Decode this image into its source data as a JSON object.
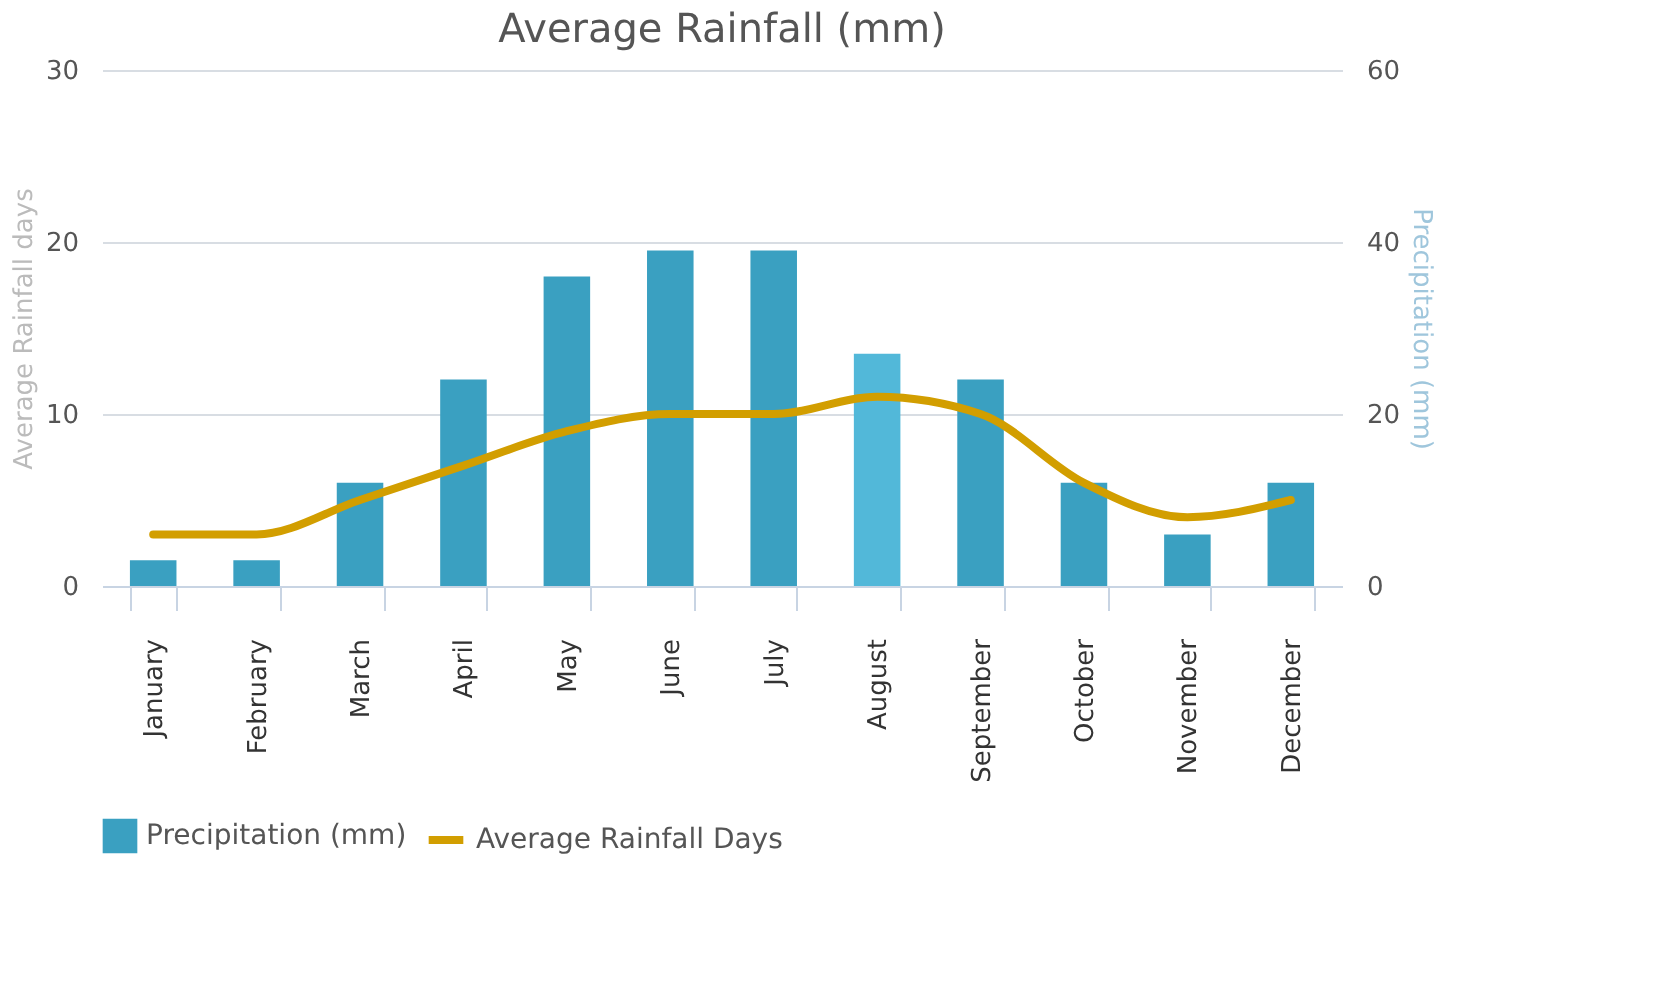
{
  "chart_data": {
    "type": "bar",
    "title": "Average Rainfall (mm)",
    "categories": [
      "January",
      "February",
      "March",
      "April",
      "May",
      "June",
      "July",
      "August",
      "September",
      "October",
      "November",
      "December"
    ],
    "series": [
      {
        "name": "Precipitation (mm)",
        "axis": "y2",
        "color": "#3aa0c1",
        "colors": [
          "#3aa0c1",
          "#3aa0c1",
          "#3aa0c1",
          "#3aa0c1",
          "#3aa0c1",
          "#3aa0c1",
          "#3aa0c1",
          "#52b8d9",
          "#3aa0c1",
          "#3aa0c1",
          "#3aa0c1",
          "#3aa0c1"
        ],
        "values": [
          3,
          3,
          12,
          24,
          36,
          39,
          39,
          27,
          24,
          12,
          6,
          12
        ]
      },
      {
        "name": "Average Rainfall Days",
        "type": "line",
        "color": "#d29e00",
        "line_style": "solid",
        "values": [
          3,
          3,
          5,
          7,
          9,
          10,
          10,
          11,
          10,
          6,
          4,
          5
        ]
      }
    ],
    "ylabel": "Average Rainfall days",
    "y2label": "Precipitation (mm)",
    "ylim": [
      0,
      30
    ],
    "yticks": [
      0,
      10,
      20,
      30
    ],
    "y2lim": [
      0,
      60
    ],
    "y2ticks": [
      0,
      20,
      40,
      60
    ],
    "grid": "y",
    "legend": "bottom"
  }
}
